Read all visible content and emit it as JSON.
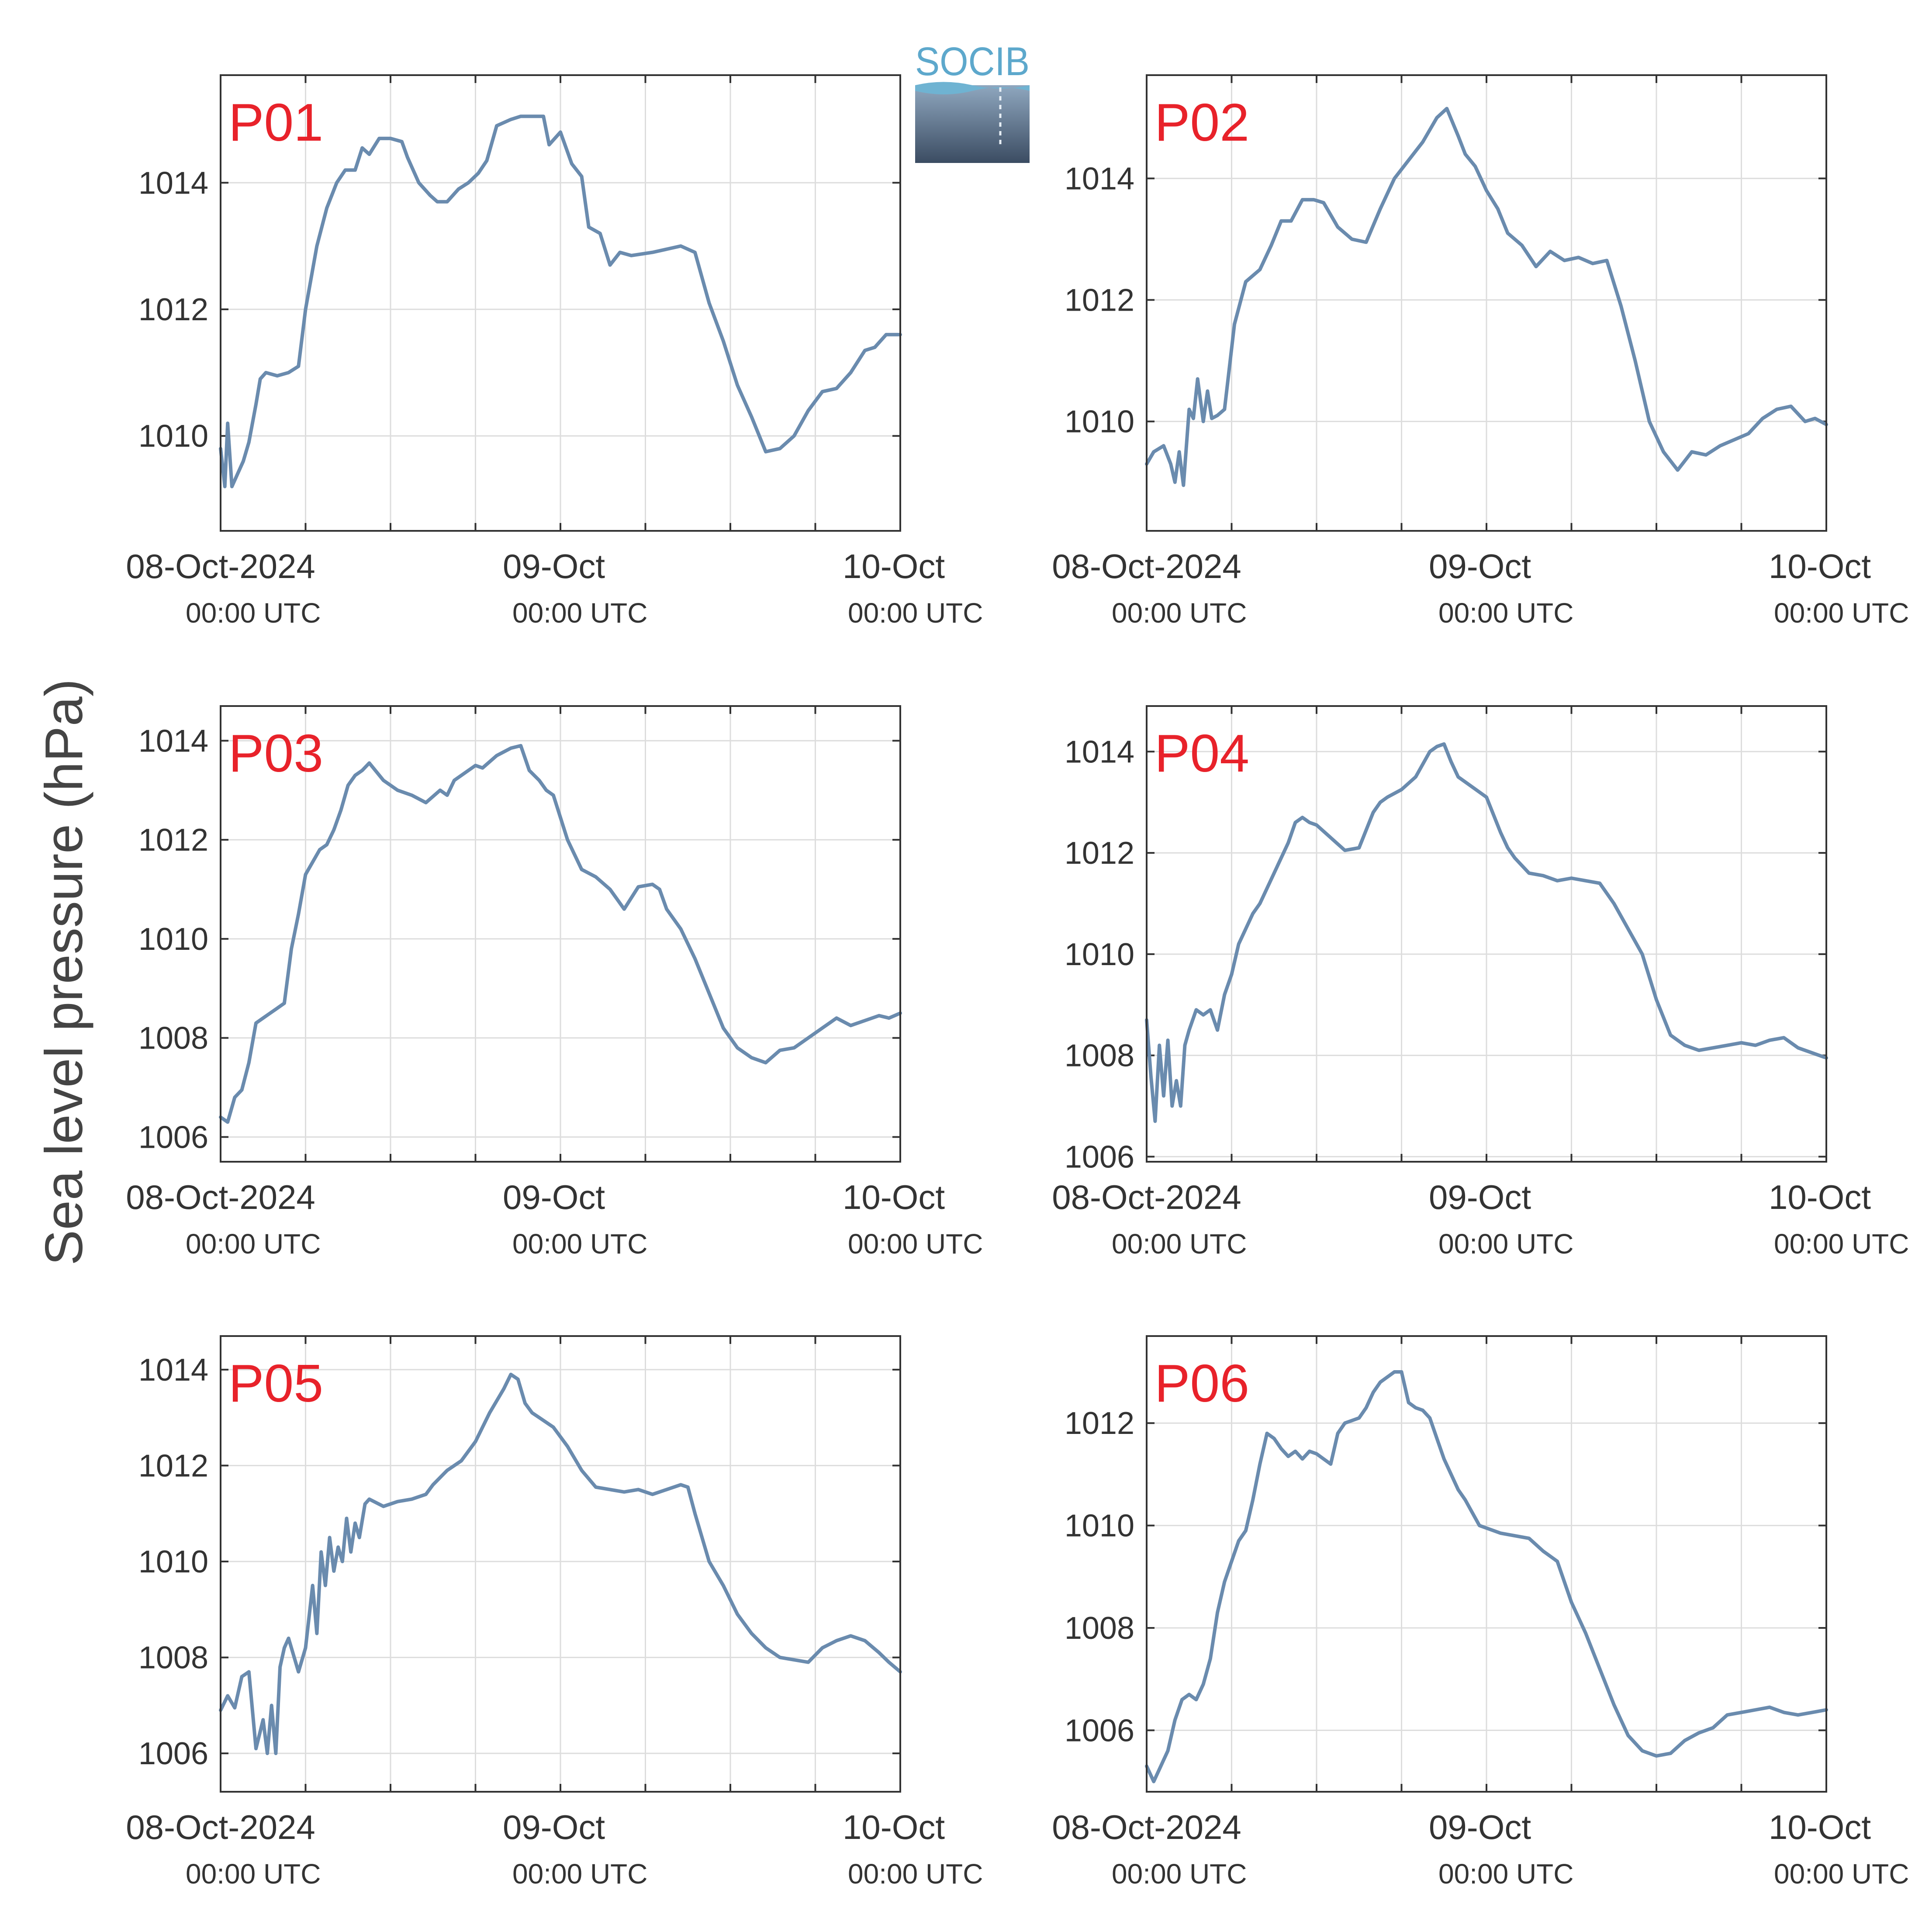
{
  "figure": {
    "ylabel": "Sea level pressure (hPa)",
    "logo_text": "SOCIB",
    "x_ticks": [
      {
        "main": "08-Oct-2024",
        "sub": "00:00 UTC"
      },
      {
        "main": "09-Oct",
        "sub": "00:00 UTC"
      },
      {
        "main": "10-Oct",
        "sub": "00:00 UTC"
      }
    ]
  },
  "colors": {
    "line": "#6a8bae",
    "label": "#e8222a",
    "axis": "#333333",
    "grid": "#dddddd",
    "text": "#333333"
  },
  "chart_data": [
    {
      "type": "line",
      "title": "P01",
      "x_unit": "hours since 08-Oct-2024 00:00 UTC",
      "xlim": [
        0,
        48
      ],
      "ylim": [
        1008.5,
        1015.7
      ],
      "yticks": [
        1010,
        1012,
        1014
      ],
      "grid": true,
      "x": [
        0,
        0.3,
        0.5,
        0.8,
        1.2,
        1.6,
        2.0,
        2.5,
        2.8,
        3.2,
        4.0,
        4.8,
        5.5,
        6.0,
        6.8,
        7.5,
        8.2,
        8.8,
        9.5,
        10.0,
        10.5,
        11.2,
        12.0,
        12.8,
        13.2,
        14.0,
        14.8,
        15.3,
        16.0,
        16.8,
        17.5,
        18.2,
        18.8,
        19.5,
        20.5,
        21.2,
        22.0,
        22.8,
        23.2,
        24.0,
        24.8,
        25.5,
        26.0,
        26.8,
        27.5,
        28.2,
        29.0,
        30.5,
        31.5,
        32.5,
        33.5,
        34.5,
        35.5,
        36.5,
        37.5,
        38.5,
        39.5,
        40.5,
        41.5,
        42.5,
        43.5,
        44.5,
        45.5,
        46.2,
        47.0,
        48.0
      ],
      "values": [
        1009.8,
        1009.2,
        1010.2,
        1009.2,
        1009.4,
        1009.6,
        1009.9,
        1010.5,
        1010.9,
        1011.0,
        1010.95,
        1011.0,
        1011.1,
        1012.0,
        1013.0,
        1013.6,
        1014.0,
        1014.2,
        1014.2,
        1014.55,
        1014.45,
        1014.7,
        1014.7,
        1014.65,
        1014.4,
        1014.0,
        1013.8,
        1013.7,
        1013.7,
        1013.9,
        1014.0,
        1014.15,
        1014.35,
        1014.9,
        1015.0,
        1015.05,
        1015.05,
        1015.05,
        1014.6,
        1014.8,
        1014.3,
        1014.1,
        1013.3,
        1013.2,
        1012.7,
        1012.9,
        1012.85,
        1012.9,
        1012.95,
        1013.0,
        1012.9,
        1012.1,
        1011.5,
        1010.8,
        1010.3,
        1009.75,
        1009.8,
        1010.0,
        1010.4,
        1010.7,
        1010.75,
        1011.0,
        1011.35,
        1011.4,
        1011.6,
        1011.6
      ]
    },
    {
      "type": "line",
      "title": "P02",
      "x_unit": "hours since 08-Oct-2024 00:00 UTC",
      "xlim": [
        0,
        48
      ],
      "ylim": [
        1008.2,
        1015.7
      ],
      "yticks": [
        1010,
        1012,
        1014
      ],
      "grid": true,
      "x": [
        0,
        0.5,
        1.2,
        1.7,
        2.0,
        2.3,
        2.6,
        3.0,
        3.3,
        3.6,
        4.0,
        4.3,
        4.6,
        5.0,
        5.5,
        6.2,
        7.0,
        8.0,
        8.8,
        9.5,
        10.2,
        11.0,
        11.8,
        12.5,
        13.5,
        14.5,
        15.5,
        16.5,
        17.5,
        18.5,
        19.5,
        20.5,
        21.2,
        22.0,
        22.5,
        23.2,
        24.0,
        24.8,
        25.5,
        26.5,
        27.5,
        28.5,
        29.5,
        30.5,
        31.5,
        32.5,
        33.5,
        34.5,
        35.5,
        36.5,
        37.5,
        38.5,
        39.5,
        40.5,
        41.5,
        42.5,
        43.5,
        44.5,
        45.5,
        46.5,
        47.2,
        48.0
      ],
      "values": [
        1009.3,
        1009.5,
        1009.6,
        1009.3,
        1009.0,
        1009.5,
        1008.95,
        1010.2,
        1010.05,
        1010.7,
        1010.0,
        1010.5,
        1010.05,
        1010.1,
        1010.2,
        1011.6,
        1012.3,
        1012.5,
        1012.9,
        1013.3,
        1013.3,
        1013.65,
        1013.65,
        1013.6,
        1013.2,
        1013.0,
        1012.95,
        1013.5,
        1014.0,
        1014.3,
        1014.6,
        1015.0,
        1015.15,
        1014.7,
        1014.4,
        1014.2,
        1013.8,
        1013.5,
        1013.1,
        1012.9,
        1012.55,
        1012.8,
        1012.65,
        1012.7,
        1012.6,
        1012.65,
        1011.9,
        1011.0,
        1010.0,
        1009.5,
        1009.2,
        1009.5,
        1009.45,
        1009.6,
        1009.7,
        1009.8,
        1010.05,
        1010.2,
        1010.25,
        1010.0,
        1010.05,
        1009.95
      ]
    },
    {
      "type": "line",
      "title": "P03",
      "x_unit": "hours since 08-Oct-2024 00:00 UTC",
      "xlim": [
        0,
        48
      ],
      "ylim": [
        1005.5,
        1014.7
      ],
      "yticks": [
        1006,
        1008,
        1010,
        1012,
        1014
      ],
      "grid": true,
      "x": [
        0,
        0.5,
        1.0,
        1.5,
        2.0,
        2.5,
        3.0,
        3.5,
        4.0,
        4.5,
        5.0,
        5.5,
        6.0,
        7.0,
        7.5,
        8.0,
        8.5,
        9.0,
        9.5,
        10.0,
        10.5,
        11.5,
        12.0,
        12.5,
        13.5,
        14.5,
        15.5,
        16.0,
        16.5,
        17.5,
        18.0,
        18.5,
        19.5,
        20.5,
        21.2,
        21.8,
        22.5,
        23.0,
        23.5,
        24.5,
        25.0,
        25.5,
        26.5,
        27.5,
        28.0,
        28.5,
        29.5,
        30.5,
        31.0,
        31.5,
        32.5,
        33.5,
        34.5,
        35.5,
        36.5,
        37.5,
        38.5,
        39.5,
        40.5,
        41.5,
        42.5,
        43.5,
        44.5,
        45.5,
        46.5,
        47.2,
        48.0
      ],
      "values": [
        1006.4,
        1006.3,
        1006.8,
        1006.95,
        1007.5,
        1008.3,
        1008.4,
        1008.5,
        1008.6,
        1008.7,
        1009.8,
        1010.5,
        1011.3,
        1011.8,
        1011.9,
        1012.2,
        1012.6,
        1013.1,
        1013.3,
        1013.4,
        1013.55,
        1013.2,
        1013.1,
        1013.0,
        1012.9,
        1012.75,
        1013.0,
        1012.9,
        1013.2,
        1013.4,
        1013.5,
        1013.45,
        1013.7,
        1013.85,
        1013.9,
        1013.4,
        1013.2,
        1013.0,
        1012.9,
        1012.0,
        1011.7,
        1011.4,
        1011.25,
        1011.0,
        1010.8,
        1010.6,
        1011.05,
        1011.1,
        1011.0,
        1010.6,
        1010.2,
        1009.6,
        1008.9,
        1008.2,
        1007.8,
        1007.6,
        1007.5,
        1007.75,
        1007.8,
        1008.0,
        1008.2,
        1008.4,
        1008.25,
        1008.35,
        1008.45,
        1008.4,
        1008.5
      ]
    },
    {
      "type": "line",
      "title": "P04",
      "x_unit": "hours since 08-Oct-2024 00:00 UTC",
      "xlim": [
        0,
        48
      ],
      "ylim": [
        1005.9,
        1014.9
      ],
      "yticks": [
        1006,
        1008,
        1010,
        1012,
        1014
      ],
      "grid": true,
      "x": [
        0,
        0.3,
        0.6,
        0.9,
        1.2,
        1.5,
        1.8,
        2.1,
        2.4,
        2.7,
        3.0,
        3.5,
        4.0,
        4.5,
        5.0,
        5.5,
        6.0,
        6.5,
        7.0,
        7.5,
        8.0,
        9.0,
        10.0,
        10.5,
        11.0,
        11.5,
        12.0,
        13.0,
        14.0,
        15.0,
        16.0,
        16.5,
        17.0,
        18.0,
        19.0,
        20.0,
        20.5,
        21.0,
        21.5,
        22.0,
        23.0,
        24.0,
        25.0,
        25.5,
        26.0,
        27.0,
        28.0,
        29.0,
        30.0,
        31.0,
        32.0,
        33.0,
        34.0,
        35.0,
        36.0,
        37.0,
        38.0,
        39.0,
        40.0,
        41.0,
        42.0,
        43.0,
        44.0,
        45.0,
        46.0,
        47.0,
        48.0
      ],
      "values": [
        1008.7,
        1007.6,
        1006.7,
        1008.2,
        1007.2,
        1008.3,
        1007.0,
        1007.5,
        1007.0,
        1008.2,
        1008.5,
        1008.9,
        1008.8,
        1008.9,
        1008.5,
        1009.2,
        1009.6,
        1010.2,
        1010.5,
        1010.8,
        1011.0,
        1011.6,
        1012.2,
        1012.6,
        1012.7,
        1012.6,
        1012.55,
        1012.3,
        1012.05,
        1012.1,
        1012.8,
        1013.0,
        1013.1,
        1013.25,
        1013.5,
        1014.0,
        1014.1,
        1014.15,
        1013.8,
        1013.5,
        1013.3,
        1013.1,
        1012.4,
        1012.1,
        1011.9,
        1011.6,
        1011.55,
        1011.45,
        1011.5,
        1011.45,
        1011.4,
        1011.0,
        1010.5,
        1010.0,
        1009.1,
        1008.4,
        1008.2,
        1008.1,
        1008.15,
        1008.2,
        1008.25,
        1008.2,
        1008.3,
        1008.35,
        1008.15,
        1008.05,
        1007.95
      ]
    },
    {
      "type": "line",
      "title": "P05",
      "x_unit": "hours since 08-Oct-2024 00:00 UTC",
      "xlim": [
        0,
        48
      ],
      "ylim": [
        1005.2,
        1014.7
      ],
      "yticks": [
        1006,
        1008,
        1010,
        1012,
        1014
      ],
      "grid": true,
      "x": [
        0,
        0.5,
        1.0,
        1.5,
        2.0,
        2.5,
        3.0,
        3.3,
        3.6,
        3.9,
        4.2,
        4.5,
        4.8,
        5.5,
        6.0,
        6.5,
        6.8,
        7.1,
        7.4,
        7.7,
        8.0,
        8.3,
        8.6,
        8.9,
        9.2,
        9.5,
        9.8,
        10.2,
        10.5,
        11.5,
        12.5,
        13.5,
        14.5,
        15.0,
        16.0,
        17.0,
        18.0,
        18.5,
        19.0,
        20.0,
        20.5,
        21.0,
        21.5,
        22.0,
        22.5,
        23.5,
        24.5,
        25.5,
        26.5,
        27.5,
        28.5,
        29.5,
        30.5,
        31.5,
        32.5,
        33.0,
        33.5,
        34.5,
        35.5,
        36.5,
        37.5,
        38.5,
        39.5,
        40.5,
        41.5,
        42.5,
        43.5,
        44.5,
        45.5,
        46.5,
        47.2,
        48.0
      ],
      "values": [
        1006.9,
        1007.2,
        1006.95,
        1007.6,
        1007.7,
        1006.1,
        1006.7,
        1006.0,
        1007.0,
        1006.0,
        1007.8,
        1008.2,
        1008.4,
        1007.7,
        1008.2,
        1009.5,
        1008.5,
        1010.2,
        1009.5,
        1010.5,
        1009.8,
        1010.3,
        1010.0,
        1010.9,
        1010.2,
        1010.8,
        1010.5,
        1011.2,
        1011.3,
        1011.15,
        1011.25,
        1011.3,
        1011.4,
        1011.6,
        1011.9,
        1012.1,
        1012.5,
        1012.8,
        1013.1,
        1013.6,
        1013.9,
        1013.8,
        1013.3,
        1013.1,
        1013.0,
        1012.8,
        1012.4,
        1011.9,
        1011.55,
        1011.5,
        1011.45,
        1011.5,
        1011.4,
        1011.5,
        1011.6,
        1011.55,
        1011.0,
        1010.0,
        1009.5,
        1008.9,
        1008.5,
        1008.2,
        1008.0,
        1007.95,
        1007.9,
        1008.2,
        1008.35,
        1008.45,
        1008.35,
        1008.1,
        1007.9,
        1007.7
      ]
    },
    {
      "type": "line",
      "title": "P06",
      "x_unit": "hours since 08-Oct-2024 00:00 UTC",
      "xlim": [
        0,
        48
      ],
      "ylim": [
        1004.8,
        1013.7
      ],
      "yticks": [
        1006,
        1008,
        1010,
        1012
      ],
      "grid": true,
      "x": [
        0,
        0.5,
        1.0,
        1.5,
        2.0,
        2.5,
        3.0,
        3.5,
        4.0,
        4.5,
        5.0,
        5.5,
        6.0,
        6.5,
        7.0,
        7.5,
        8.0,
        8.5,
        9.0,
        9.5,
        10.0,
        10.5,
        11.0,
        11.5,
        12.0,
        12.5,
        13.0,
        13.5,
        14.0,
        14.5,
        15.0,
        15.5,
        16.0,
        16.5,
        17.0,
        17.5,
        18.0,
        18.5,
        19.0,
        19.5,
        20.0,
        20.5,
        21.0,
        21.5,
        22.0,
        22.5,
        23.0,
        23.5,
        24.0,
        25.0,
        26.0,
        27.0,
        28.0,
        29.0,
        30.0,
        31.0,
        32.0,
        33.0,
        34.0,
        35.0,
        36.0,
        37.0,
        38.0,
        39.0,
        40.0,
        41.0,
        42.0,
        43.0,
        44.0,
        45.0,
        46.0,
        47.0,
        48.0
      ],
      "values": [
        1005.3,
        1005.0,
        1005.3,
        1005.6,
        1006.2,
        1006.6,
        1006.7,
        1006.6,
        1006.9,
        1007.4,
        1008.3,
        1008.9,
        1009.3,
        1009.7,
        1009.9,
        1010.5,
        1011.2,
        1011.8,
        1011.7,
        1011.5,
        1011.35,
        1011.45,
        1011.3,
        1011.45,
        1011.4,
        1011.3,
        1011.2,
        1011.8,
        1012.0,
        1012.05,
        1012.1,
        1012.3,
        1012.6,
        1012.8,
        1012.9,
        1013.0,
        1013.0,
        1012.4,
        1012.3,
        1012.25,
        1012.1,
        1011.7,
        1011.3,
        1011.0,
        1010.7,
        1010.5,
        1010.25,
        1010.0,
        1009.95,
        1009.85,
        1009.8,
        1009.75,
        1009.5,
        1009.3,
        1008.5,
        1007.9,
        1007.2,
        1006.5,
        1005.9,
        1005.6,
        1005.5,
        1005.55,
        1005.8,
        1005.95,
        1006.05,
        1006.3,
        1006.35,
        1006.4,
        1006.45,
        1006.35,
        1006.3,
        1006.35,
        1006.4
      ]
    }
  ]
}
